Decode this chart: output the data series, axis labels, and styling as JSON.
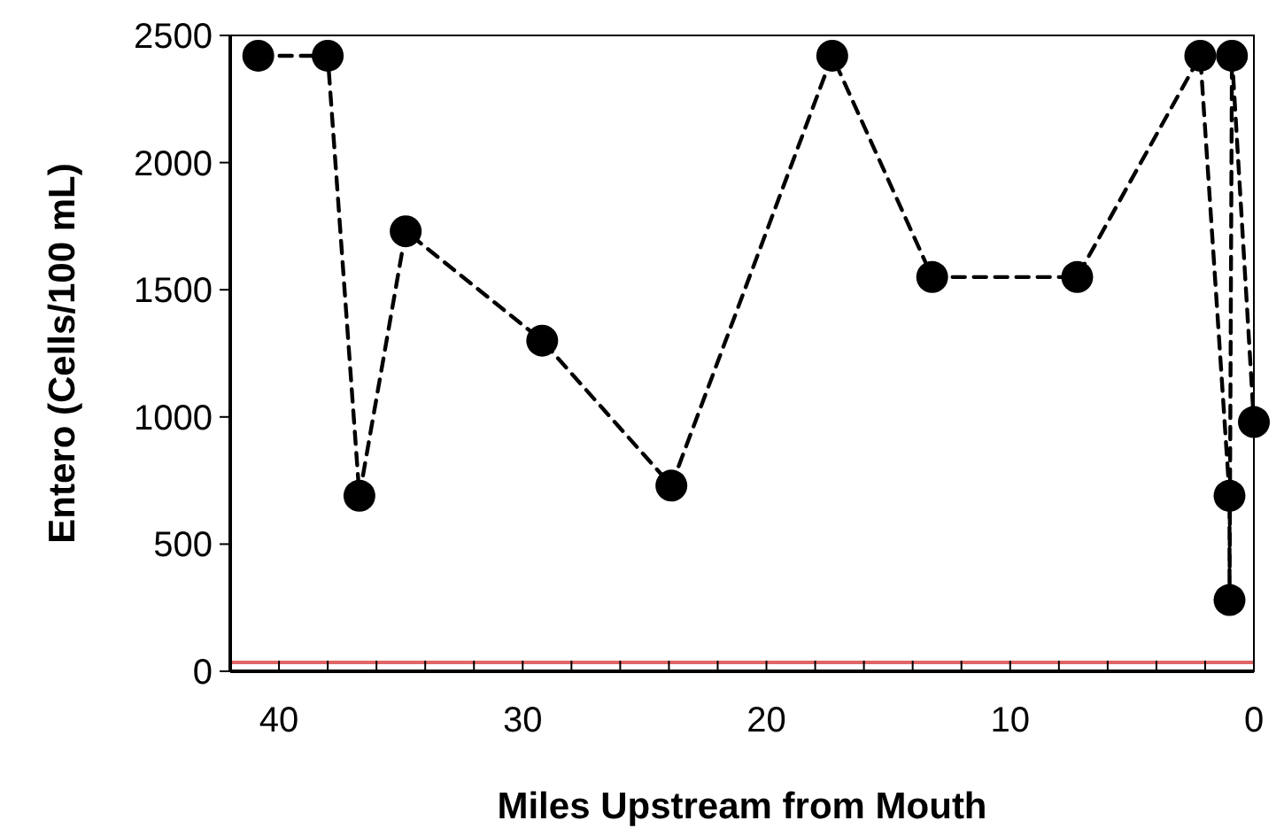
{
  "chart_data": {
    "type": "line",
    "xlabel": "Miles Upstream from Mouth",
    "ylabel": "Entero (Cells/100 mL)",
    "x": [
      40.85,
      38.0,
      36.7,
      34.8,
      29.2,
      23.9,
      17.3,
      13.2,
      7.25,
      2.2,
      1.0,
      1.0,
      0.9,
      0
    ],
    "series": [
      {
        "color": "#000000",
        "values": [
          2420,
          2420,
          690,
          1730,
          1300,
          730,
          2420,
          1550,
          1550,
          2420,
          690,
          280,
          2420,
          980
        ]
      }
    ],
    "xlim": [
      42,
      0
    ],
    "xticks": [
      40,
      {
        "value": 38,
        "label": null
      },
      {
        "value": 36,
        "label": null
      },
      {
        "value": 34,
        "label": null
      },
      {
        "value": 32,
        "label": null
      },
      30,
      {
        "value": 28,
        "label": null
      },
      {
        "value": 26,
        "label": null
      },
      {
        "value": 24,
        "label": null
      },
      {
        "value": 22,
        "label": null
      },
      20,
      {
        "value": 18,
        "label": null
      },
      {
        "value": 16,
        "label": null
      },
      {
        "value": 14,
        "label": null
      },
      {
        "value": 12,
        "label": null
      },
      10,
      {
        "value": 8,
        "label": null
      },
      {
        "value": 6,
        "label": null
      },
      {
        "value": 4,
        "label": null
      },
      {
        "value": 2,
        "label": null
      },
      0
    ],
    "ylim": [
      0,
      2500
    ],
    "yticks": [
      0,
      500,
      1000,
      1500,
      2000,
      2500
    ],
    "ref_lines": [
      {
        "axis": "y",
        "value": 35,
        "color": "#e06666"
      }
    ],
    "marker": "circle",
    "line_style": "dashed"
  }
}
